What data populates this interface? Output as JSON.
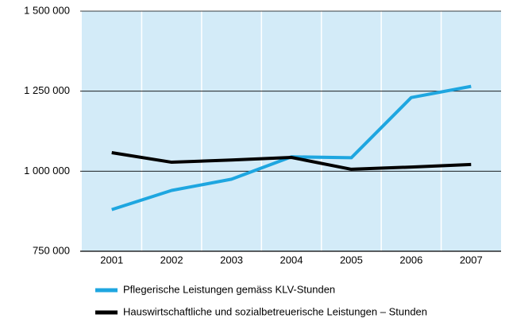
{
  "chart_data": {
    "type": "line",
    "categories": [
      "2001",
      "2002",
      "2003",
      "2004",
      "2005",
      "2006",
      "2007"
    ],
    "series": [
      {
        "name": "Pflegerische Leistungen gemäss KLV-Stunden",
        "color": "#1ea6e0",
        "values": [
          880000,
          940000,
          975000,
          1045000,
          1042000,
          1230000,
          1265000
        ]
      },
      {
        "name": "Hauswirtschaftliche und sozialbetreuerische Leistungen – Stunden",
        "color": "#000000",
        "values": [
          1058000,
          1028000,
          1035000,
          1043000,
          1006000,
          1013000,
          1021000
        ]
      }
    ],
    "ylim": [
      750000,
      1500000
    ],
    "yticks": [
      {
        "value": 750000,
        "label": "750 000"
      },
      {
        "value": 1000000,
        "label": "1 000 000"
      },
      {
        "value": 1250000,
        "label": "1 250 000"
      },
      {
        "value": 1500000,
        "label": "1 500 000"
      }
    ],
    "grid": true,
    "legend": "bottom"
  }
}
